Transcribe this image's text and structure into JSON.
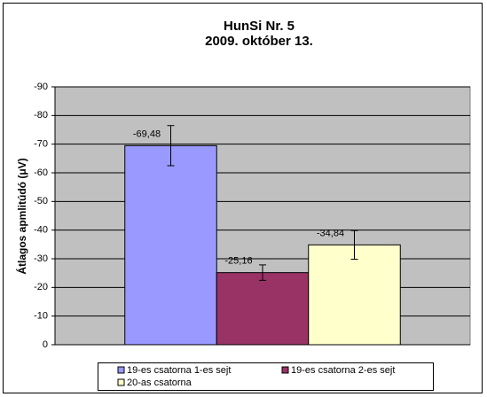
{
  "chart_data": {
    "type": "bar",
    "title": "HunSi Nr. 5",
    "subtitle": "2009. október 13.",
    "y_label": "Átlagos apmlitúdó (μV)",
    "categories": [
      null
    ],
    "series": [
      {
        "name": "19-es csatorna 1-es sejt",
        "color": "#9999ff",
        "values": [
          -69.48
        ],
        "value_labels": [
          "-69,48"
        ],
        "errors": [
          7
        ]
      },
      {
        "name": "19-es csatorna 2-es sejt",
        "color": "#993366",
        "values": [
          -25.16
        ],
        "value_labels": [
          "-25,16"
        ],
        "errors": [
          2.7
        ]
      },
      {
        "name": "20-as csatorna",
        "color": "#ffffcc",
        "values": [
          -34.84
        ],
        "value_labels": [
          "-34,84"
        ],
        "errors": [
          5
        ]
      }
    ],
    "ylim": [
      0,
      -90
    ],
    "yticks": [
      0,
      -10,
      -20,
      -30,
      -40,
      -50,
      -60,
      -70,
      -80,
      -90
    ],
    "grid": true
  }
}
